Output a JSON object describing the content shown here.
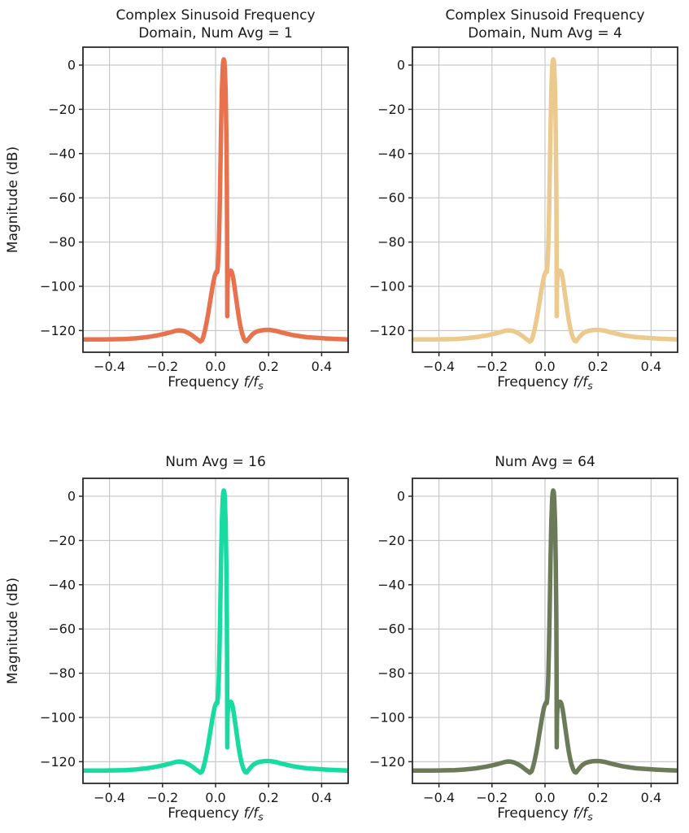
{
  "style": {
    "background": "#ffffff",
    "text_color": "#1a1a1a",
    "grid_color": "#c9c9c9",
    "spine_color": "#2a2a2a"
  },
  "chart_data": {
    "type": "line",
    "layout": "2x2 grid of subplots",
    "xlabel": {
      "prefix": "Frequency ",
      "math": "f/f",
      "sub": "s"
    },
    "ylabel": "Magnitude (dB)",
    "xlim": [
      -0.5,
      0.5
    ],
    "ylim": [
      -129.8,
      8.1
    ],
    "grid": true,
    "legend": "none",
    "xticks": {
      "values": [
        -0.4,
        -0.2,
        0.0,
        0.2,
        0.4
      ],
      "labels": [
        "−0.4",
        "−0.2",
        "0.0",
        "0.2",
        "0.4"
      ]
    },
    "yticks": {
      "values": [
        0,
        -20,
        -40,
        -60,
        -80,
        -100,
        -120
      ],
      "labels": [
        "0",
        "−20",
        "−40",
        "−60",
        "−80",
        "−100",
        "−120"
      ]
    },
    "subplots": [
      {
        "title": "Complex Sinusoid Frequency\nDomain, Num Avg = 1",
        "num_avg": 1,
        "color": "#E8724E",
        "show_ylabel": true
      },
      {
        "title": "Complex Sinusoid Frequency\nDomain, Num Avg = 4",
        "num_avg": 4,
        "color": "#ECC98D",
        "show_ylabel": false
      },
      {
        "title": "Num Avg = 16",
        "num_avg": 16,
        "color": "#17DBA0",
        "show_ylabel": true
      },
      {
        "title": "Num Avg = 64",
        "num_avg": 64,
        "color": "#6B7A58",
        "show_ylabel": false
      }
    ],
    "curve": {
      "description": "Same averaged spectrum shape in all four subplots; sinusoid peak at f/fs ≈ 0.031",
      "peak_frequency": 0.031,
      "peak_db": 2.6,
      "shoulder_db": -93,
      "notch_db": -113.5,
      "noise_floor_db": -124,
      "points": [
        [
          -0.5,
          -124.0
        ],
        [
          -0.46,
          -124.0
        ],
        [
          -0.42,
          -124.0
        ],
        [
          -0.38,
          -123.9
        ],
        [
          -0.34,
          -123.8
        ],
        [
          -0.3,
          -123.5
        ],
        [
          -0.26,
          -123.0
        ],
        [
          -0.22,
          -122.2
        ],
        [
          -0.19,
          -121.4
        ],
        [
          -0.165,
          -120.6
        ],
        [
          -0.15,
          -120.1
        ],
        [
          -0.139,
          -119.9
        ],
        [
          -0.128,
          -120.0
        ],
        [
          -0.115,
          -120.4
        ],
        [
          -0.1,
          -121.3
        ],
        [
          -0.088,
          -122.2
        ],
        [
          -0.075,
          -123.4
        ],
        [
          -0.065,
          -124.3
        ],
        [
          -0.057,
          -125.0
        ],
        [
          -0.051,
          -124.4
        ],
        [
          -0.046,
          -122.7
        ],
        [
          -0.04,
          -119.8
        ],
        [
          -0.034,
          -116.4
        ],
        [
          -0.028,
          -112.4
        ],
        [
          -0.022,
          -108.0
        ],
        [
          -0.016,
          -103.5
        ],
        [
          -0.01,
          -99.3
        ],
        [
          -0.004,
          -95.6
        ],
        [
          0.0,
          -94.2
        ],
        [
          0.003,
          -93.4
        ],
        [
          0.006,
          -93.6
        ],
        [
          0.009,
          -91.0
        ],
        [
          0.012,
          -83.0
        ],
        [
          0.015,
          -68.0
        ],
        [
          0.018,
          -48.0
        ],
        [
          0.021,
          -28.0
        ],
        [
          0.024,
          -11.0
        ],
        [
          0.027,
          -1.0
        ],
        [
          0.029,
          1.9
        ],
        [
          0.031,
          2.6
        ],
        [
          0.033,
          1.9
        ],
        [
          0.035,
          -1.2
        ],
        [
          0.038,
          -12.0
        ],
        [
          0.0405,
          -30.0
        ],
        [
          0.0425,
          -55.0
        ],
        [
          0.0435,
          -80.0
        ],
        [
          0.0442,
          -113.5
        ],
        [
          0.045,
          -100.0
        ],
        [
          0.047,
          -95.8
        ],
        [
          0.05,
          -94.0
        ],
        [
          0.054,
          -93.0
        ],
        [
          0.058,
          -92.9
        ],
        [
          0.062,
          -93.8
        ],
        [
          0.066,
          -96.0
        ],
        [
          0.07,
          -99.0
        ],
        [
          0.075,
          -103.2
        ],
        [
          0.08,
          -107.6
        ],
        [
          0.085,
          -111.8
        ],
        [
          0.09,
          -115.6
        ],
        [
          0.095,
          -118.8
        ],
        [
          0.1,
          -121.3
        ],
        [
          0.106,
          -123.5
        ],
        [
          0.112,
          -124.7
        ],
        [
          0.117,
          -124.9
        ],
        [
          0.123,
          -124.0
        ],
        [
          0.13,
          -122.9
        ],
        [
          0.14,
          -121.6
        ],
        [
          0.152,
          -120.6
        ],
        [
          0.165,
          -120.1
        ],
        [
          0.18,
          -119.8
        ],
        [
          0.195,
          -119.7
        ],
        [
          0.21,
          -119.8
        ],
        [
          0.225,
          -120.1
        ],
        [
          0.245,
          -120.7
        ],
        [
          0.265,
          -121.3
        ],
        [
          0.29,
          -122.0
        ],
        [
          0.315,
          -122.5
        ],
        [
          0.345,
          -123.0
        ],
        [
          0.38,
          -123.3
        ],
        [
          0.42,
          -123.6
        ],
        [
          0.46,
          -123.8
        ],
        [
          0.5,
          -124.0
        ]
      ]
    }
  }
}
